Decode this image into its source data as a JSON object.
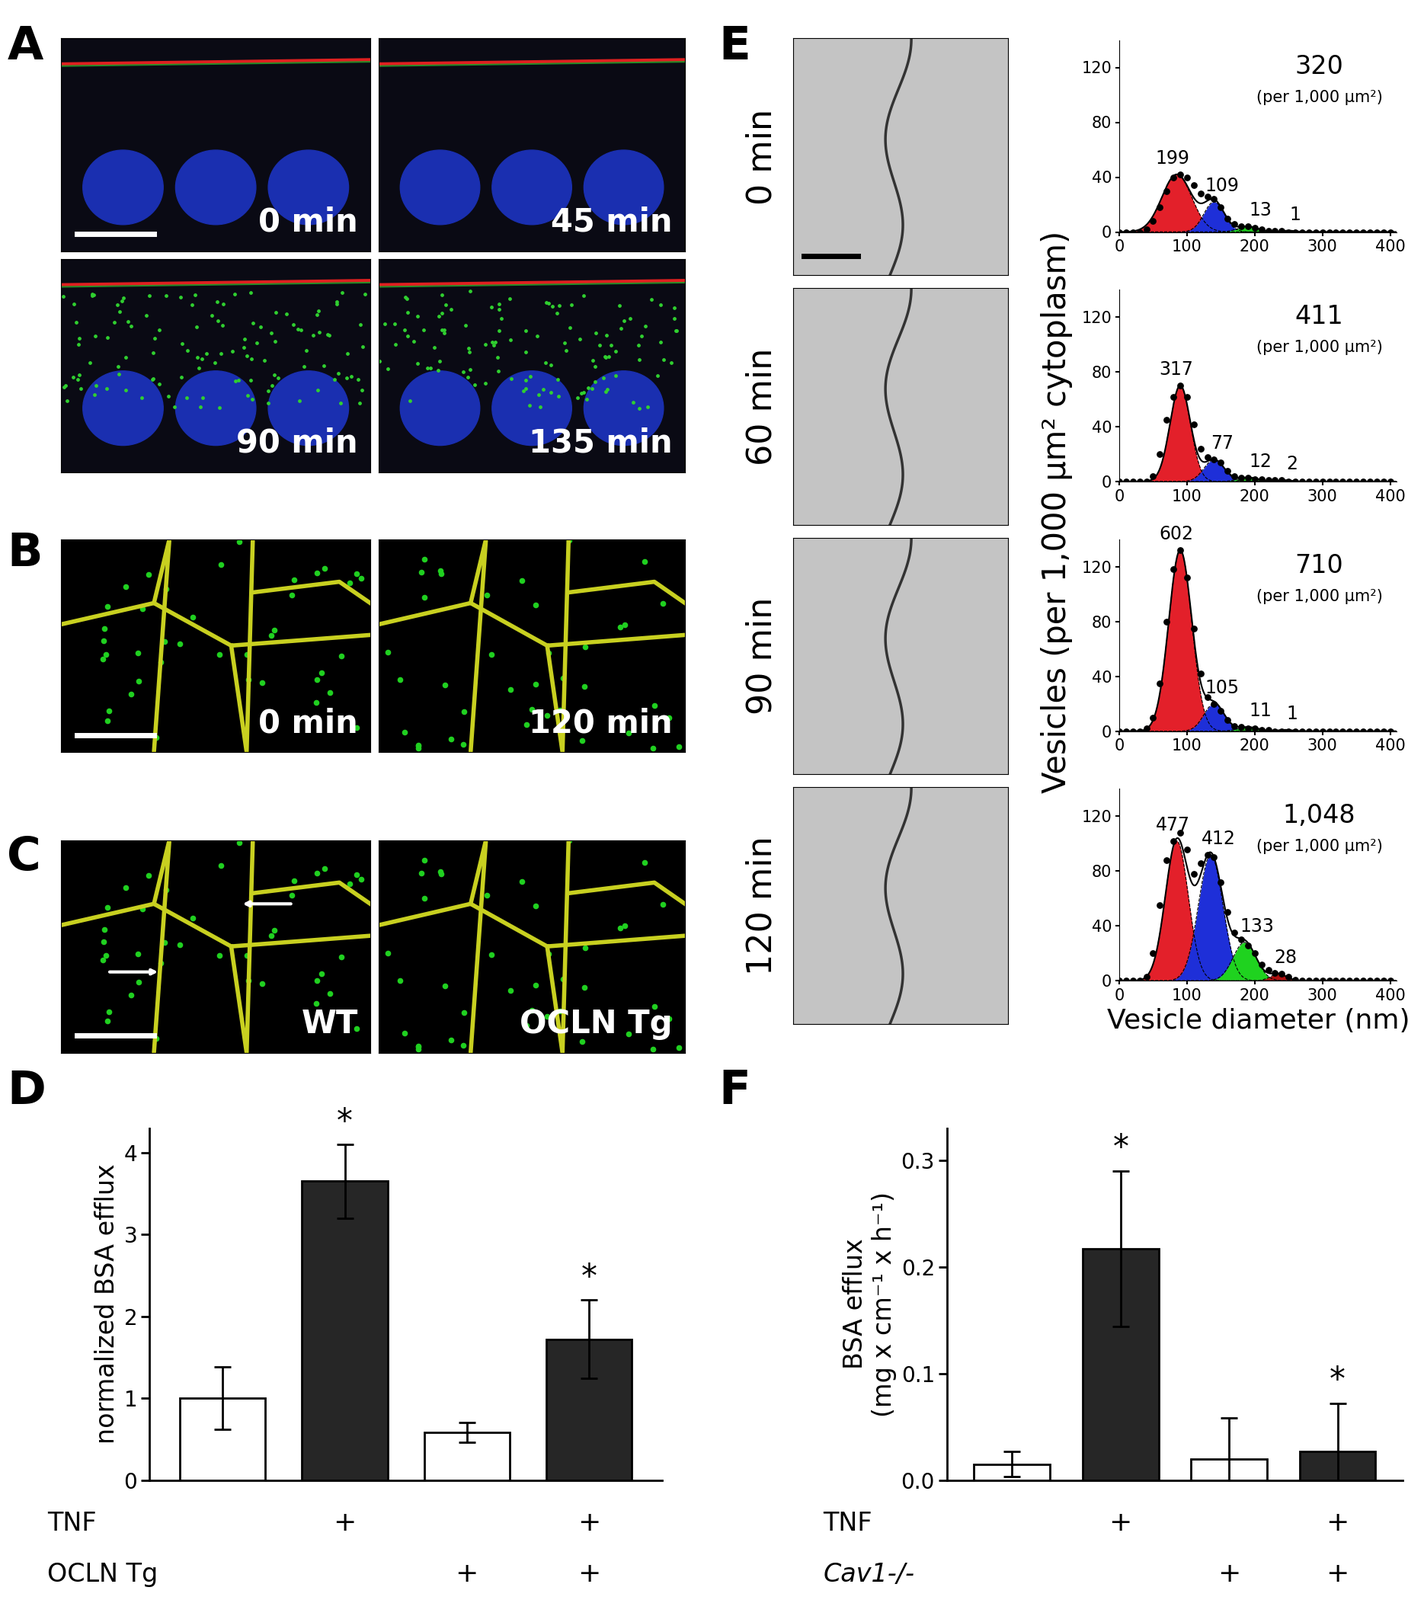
{
  "panel_letters": [
    "A",
    "B",
    "C",
    "D",
    "E",
    "F"
  ],
  "images": {
    "A": [
      "0 min",
      "45 min",
      "90 min",
      "135 min"
    ],
    "B": [
      "0 min",
      "120 min"
    ],
    "C": [
      "WT",
      "OCLN Tg"
    ],
    "E": [
      "0 min",
      "60 min",
      "90 min",
      "120 min"
    ]
  },
  "chart_data": [
    {
      "type": "bar",
      "panel": "D",
      "y_label": "normalized BSA efflux",
      "values": [
        1.0,
        3.65,
        0.58,
        1.72
      ],
      "errors": [
        0.38,
        0.45,
        0.12,
        0.48
      ],
      "colors": [
        "#ffffff",
        "#262626",
        "#ffffff",
        "#262626"
      ],
      "annotations": [
        {
          "index": 1,
          "text": "*"
        },
        {
          "index": 3,
          "text": "*"
        }
      ],
      "rows": [
        {
          "label": "TNF",
          "marks": [
            null,
            "+",
            null,
            "+"
          ]
        },
        {
          "label": "OCLN Tg",
          "marks": [
            null,
            null,
            "+",
            "+"
          ]
        }
      ],
      "ylim": [
        0,
        4.3
      ],
      "yticks": [
        0,
        1,
        2,
        3,
        4
      ]
    },
    {
      "type": "bar",
      "panel": "F",
      "y_label": "BSA efflux\n(mg x cm⁻¹ x h⁻¹)",
      "values": [
        0.015,
        0.217,
        0.02,
        0.027
      ],
      "errors": [
        0.012,
        0.073,
        0.038,
        0.045
      ],
      "colors": [
        "#ffffff",
        "#262626",
        "#ffffff",
        "#262626"
      ],
      "annotations": [
        {
          "index": 1,
          "text": "*"
        },
        {
          "index": 3,
          "text": "*"
        }
      ],
      "rows": [
        {
          "label": "TNF",
          "marks": [
            null,
            "+",
            null,
            "+"
          ]
        },
        {
          "label": "Cav1-/-",
          "marks": [
            null,
            null,
            "+",
            "+"
          ]
        }
      ],
      "ylim": [
        0,
        0.33
      ],
      "yticks": [
        0.0,
        0.1,
        0.2,
        0.3
      ]
    },
    {
      "type": "fit_histograms",
      "panel": "E",
      "x_label": "Vesicle diameter (nm)",
      "y_label": "Vesicles (per 1,000 µm² cytoplasm)",
      "xlim": [
        0,
        410
      ],
      "xticks": [
        0,
        100,
        200,
        300,
        400
      ],
      "ylim": [
        0,
        140
      ],
      "yticks": [
        0,
        40,
        80,
        120
      ],
      "x": [
        0,
        10,
        20,
        30,
        40,
        50,
        60,
        70,
        80,
        90,
        100,
        110,
        120,
        130,
        140,
        150,
        160,
        170,
        180,
        190,
        200,
        210,
        220,
        230,
        240,
        250,
        260,
        270,
        280,
        290,
        300,
        310,
        320,
        330,
        340,
        350,
        360,
        370,
        380,
        390,
        400
      ],
      "panels": [
        {
          "total": {
            "value": 320,
            "label": "320"
          },
          "total_note": "(per 1,000 µm²)",
          "values": [
            0,
            0,
            0,
            0,
            2,
            8,
            18,
            30,
            40,
            42,
            40,
            34,
            28,
            26,
            24,
            18,
            10,
            6,
            4,
            4,
            3,
            2,
            1,
            1,
            1,
            0,
            0,
            0,
            0,
            0,
            0,
            0,
            0,
            0,
            0,
            0,
            0,
            0,
            0,
            0,
            0
          ],
          "components": [
            {
              "center": 85,
              "sd": 22,
              "height": 42,
              "color": "#e3202a",
              "count": 199
            },
            {
              "center": 140,
              "sd": 15,
              "height": 22,
              "color": "#1e2fd8",
              "count": 109
            },
            {
              "center": 190,
              "sd": 15,
              "height": 4,
              "color": "#1fd21f",
              "count": 13
            },
            {
              "center": 250,
              "sd": 10,
              "height": 1,
              "color": "#b01010",
              "count": 1
            }
          ]
        },
        {
          "total": {
            "value": 411,
            "label": "411"
          },
          "total_note": "(per 1,000 µm²)",
          "values": [
            0,
            0,
            0,
            0,
            0,
            4,
            20,
            45,
            62,
            70,
            62,
            42,
            24,
            18,
            16,
            14,
            8,
            4,
            3,
            3,
            2,
            2,
            1,
            1,
            1,
            0,
            0,
            0,
            0,
            0,
            0,
            0,
            0,
            0,
            0,
            0,
            0,
            0,
            0,
            0,
            0
          ],
          "components": [
            {
              "center": 90,
              "sd": 15,
              "height": 70,
              "color": "#e3202a",
              "count": 317
            },
            {
              "center": 140,
              "sd": 15,
              "height": 16,
              "color": "#1e2fd8",
              "count": 77
            },
            {
              "center": 190,
              "sd": 15,
              "height": 3,
              "color": "#1fd21f",
              "count": 12
            },
            {
              "center": 245,
              "sd": 10,
              "height": 1,
              "color": "#b01010",
              "count": 2
            }
          ]
        },
        {
          "total": {
            "value": 710,
            "label": "710"
          },
          "total_note": "(per 1,000 µm²)",
          "values": [
            0,
            0,
            0,
            0,
            2,
            10,
            35,
            80,
            118,
            132,
            112,
            75,
            42,
            25,
            20,
            15,
            8,
            4,
            3,
            2,
            2,
            1,
            1,
            0,
            0,
            0,
            0,
            0,
            0,
            0,
            0,
            0,
            0,
            0,
            0,
            0,
            0,
            0,
            0,
            0,
            0
          ],
          "components": [
            {
              "center": 90,
              "sd": 17,
              "height": 132,
              "color": "#e3202a",
              "count": 602
            },
            {
              "center": 140,
              "sd": 15,
              "height": 20,
              "color": "#1e2fd8",
              "count": 105
            },
            {
              "center": 190,
              "sd": 15,
              "height": 3,
              "color": "#1fd21f",
              "count": 11
            },
            {
              "center": 245,
              "sd": 10,
              "height": 1,
              "color": "#b01010",
              "count": 1
            }
          ]
        },
        {
          "total": {
            "value": 1048,
            "label": "1,048"
          },
          "total_note": "(per 1,000 µm²)",
          "values": [
            0,
            0,
            0,
            0,
            3,
            20,
            55,
            88,
            102,
            108,
            96,
            78,
            86,
            92,
            90,
            72,
            50,
            35,
            30,
            26,
            20,
            12,
            8,
            6,
            5,
            3,
            1,
            0,
            0,
            0,
            0,
            0,
            0,
            0,
            0,
            0,
            0,
            0,
            0,
            0,
            0
          ],
          "components": [
            {
              "center": 85,
              "sd": 17,
              "height": 102,
              "color": "#e3202a",
              "count": 477
            },
            {
              "center": 135,
              "sd": 18,
              "height": 92,
              "color": "#1e2fd8",
              "count": 412
            },
            {
              "center": 185,
              "sd": 17,
              "height": 28,
              "color": "#1fd21f",
              "count": 133
            },
            {
              "center": 235,
              "sd": 12,
              "height": 5,
              "color": "#b01010",
              "count": 28
            }
          ]
        }
      ]
    }
  ]
}
